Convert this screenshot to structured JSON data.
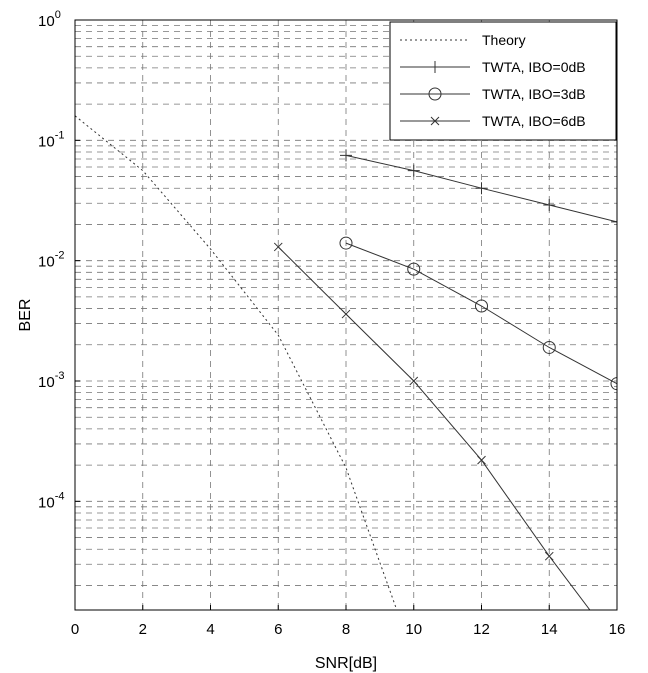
{
  "chart_data": {
    "type": "line",
    "title": "",
    "xlabel": "SNR[dB]",
    "ylabel": "BER",
    "x_scale": "linear",
    "y_scale": "log",
    "xlim": [
      0,
      16
    ],
    "ylim": [
      1.25e-05,
      1
    ],
    "grid": true,
    "legend_position": "top-right",
    "x_ticks": [
      0,
      2,
      4,
      6,
      8,
      10,
      12,
      14,
      16
    ],
    "x_tick_labels": [
      "0",
      "2",
      "4",
      "6",
      "8",
      "10",
      "12",
      "14",
      "16"
    ],
    "y_ticks": [
      1,
      0.1,
      0.01,
      0.001,
      0.0001
    ],
    "y_tick_labels": [
      {
        "base": "10",
        "exp": "0"
      },
      {
        "base": "10",
        "exp": "-1"
      },
      {
        "base": "10",
        "exp": "-2"
      },
      {
        "base": "10",
        "exp": "-3"
      },
      {
        "base": "10",
        "exp": "-4"
      }
    ],
    "series": [
      {
        "name": "Theory",
        "marker": "none",
        "line_style": "dotted",
        "x": [
          0,
          2,
          4,
          6,
          8,
          9.5
        ],
        "y": [
          0.16,
          0.056,
          0.0125,
          0.0024,
          0.00019,
          1.25e-05
        ]
      },
      {
        "name": "TWTA, IBO=0dB",
        "marker": "plus",
        "line_style": "solid",
        "x": [
          8,
          10,
          12,
          14,
          16
        ],
        "y": [
          0.075,
          0.056,
          0.04,
          0.029,
          0.021
        ]
      },
      {
        "name": "TWTA, IBO=3dB",
        "marker": "circle",
        "line_style": "solid",
        "x": [
          8,
          10,
          12,
          14,
          16
        ],
        "y": [
          0.014,
          0.0085,
          0.0042,
          0.0019,
          0.00095
        ]
      },
      {
        "name": "TWTA, IBO=6dB",
        "marker": "x",
        "line_style": "solid",
        "x": [
          6,
          8,
          10,
          12,
          14,
          15.2
        ],
        "y": [
          0.013,
          0.0036,
          0.001,
          0.00022,
          3.5e-05,
          1.25e-05
        ]
      }
    ]
  }
}
